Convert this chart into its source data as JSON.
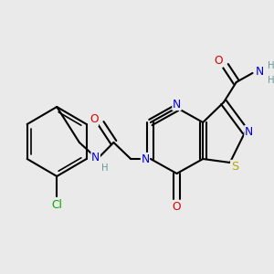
{
  "bg_color": "#eaeaea",
  "bond_color": "#000000",
  "bond_lw": 1.5,
  "dbo": 0.013,
  "atom_colors": {
    "N": "#0000dd",
    "O": "#dd0000",
    "S": "#bbaa00",
    "Cl": "#00aa00",
    "H": "#669999"
  },
  "fs": 8.8,
  "sfs": 7.2
}
